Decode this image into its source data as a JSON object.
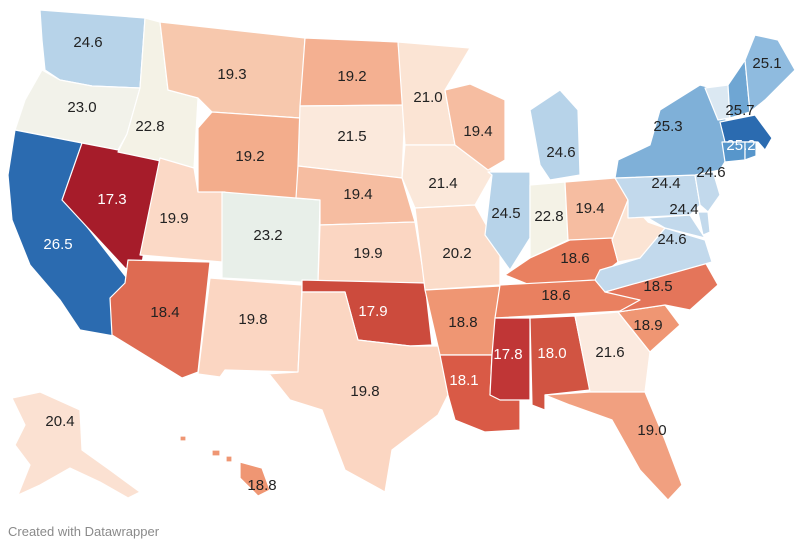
{
  "credit": "Created with Datawrapper",
  "color_scale": {
    "low": "#a61c2a",
    "high": "#2166ac"
  },
  "states": [
    {
      "id": "WA",
      "value": "24.6",
      "color": "#b7d3e9"
    },
    {
      "id": "OR",
      "value": "23.0",
      "color": "#f2f2ea"
    },
    {
      "id": "CA",
      "value": "26.5",
      "color": "#2b6bb0"
    },
    {
      "id": "NV",
      "value": "17.3",
      "color": "#a61c2a"
    },
    {
      "id": "ID",
      "value": "22.8",
      "color": "#f4f2e6"
    },
    {
      "id": "MT",
      "value": "19.3",
      "color": "#f7c8ad"
    },
    {
      "id": "WY",
      "value": "19.2",
      "color": "#f3ad8c"
    },
    {
      "id": "UT",
      "value": "19.9",
      "color": "#fbd9c6"
    },
    {
      "id": "AZ",
      "value": "18.4",
      "color": "#de6b52"
    },
    {
      "id": "CO",
      "value": "23.2",
      "color": "#e8efe9"
    },
    {
      "id": "NM",
      "value": "19.8",
      "color": "#fbd6c2"
    },
    {
      "id": "ND",
      "value": "19.2",
      "color": "#f4b091"
    },
    {
      "id": "SD",
      "value": "21.5",
      "color": "#fbe9dc"
    },
    {
      "id": "NE",
      "value": "19.4",
      "color": "#f6bda1"
    },
    {
      "id": "KS",
      "value": "19.9",
      "color": "#fbd6c2"
    },
    {
      "id": "OK",
      "value": "17.9",
      "color": "#cc4b3d"
    },
    {
      "id": "TX",
      "value": "19.8",
      "color": "#fbd6c2"
    },
    {
      "id": "MN",
      "value": "21.0",
      "color": "#fbe4d4"
    },
    {
      "id": "IA",
      "value": "21.4",
      "color": "#fbe8da"
    },
    {
      "id": "MO",
      "value": "20.2",
      "color": "#fbdcc9"
    },
    {
      "id": "AR",
      "value": "18.8",
      "color": "#ef9673"
    },
    {
      "id": "LA",
      "value": "18.1",
      "color": "#d95a46"
    },
    {
      "id": "WI",
      "value": "19.4",
      "color": "#f6bda1"
    },
    {
      "id": "IL",
      "value": "24.5",
      "color": "#b7d3e9"
    },
    {
      "id": "MI",
      "value": "24.6",
      "color": "#b7d3e9"
    },
    {
      "id": "IN",
      "value": "22.8",
      "color": "#f4f2e6"
    },
    {
      "id": "OH",
      "value": "19.4",
      "color": "#f6bda1"
    },
    {
      "id": "KY",
      "value": "18.6",
      "color": "#e98060"
    },
    {
      "id": "TN",
      "value": "18.6",
      "color": "#e98060"
    },
    {
      "id": "MS",
      "value": "17.8",
      "color": "#c03636"
    },
    {
      "id": "AL",
      "value": "18.0",
      "color": "#d15442"
    },
    {
      "id": "GA",
      "value": "21.6",
      "color": "#fbeadf"
    },
    {
      "id": "FL",
      "value": "19.0",
      "color": "#f1a080"
    },
    {
      "id": "SC",
      "value": "18.9",
      "color": "#ef9673"
    },
    {
      "id": "NC",
      "value": "18.5",
      "color": "#e4755a"
    },
    {
      "id": "VA",
      "value": "24.6",
      "color": "#c2d9ec"
    },
    {
      "id": "WV",
      "value": "",
      "color": "#fbe4d4"
    },
    {
      "id": "PA",
      "value": "24.4",
      "color": "#c2d9ec"
    },
    {
      "id": "NY",
      "value": "25.3",
      "color": "#7fb0d8"
    },
    {
      "id": "NJ",
      "value": "24.6",
      "color": "#c2d9ec"
    },
    {
      "id": "MD",
      "value": "24.4",
      "color": "#c2d9ec"
    },
    {
      "id": "DE",
      "value": "",
      "color": "#c2d9ec"
    },
    {
      "id": "VT",
      "value": "",
      "color": "#dbe8f2"
    },
    {
      "id": "NH",
      "value": "25.7",
      "color": "#6fa6d3"
    },
    {
      "id": "ME",
      "value": "25.1",
      "color": "#8fbbdf"
    },
    {
      "id": "MA",
      "value": "25.2",
      "color": "#2b6bb0"
    },
    {
      "id": "CT",
      "value": "",
      "color": "#5796cb"
    },
    {
      "id": "RI",
      "value": "",
      "color": "#5796cb"
    },
    {
      "id": "AK",
      "value": "20.4",
      "color": "#fbe1d2"
    },
    {
      "id": "HI",
      "value": "18.8",
      "color": "#ef9673"
    }
  ]
}
